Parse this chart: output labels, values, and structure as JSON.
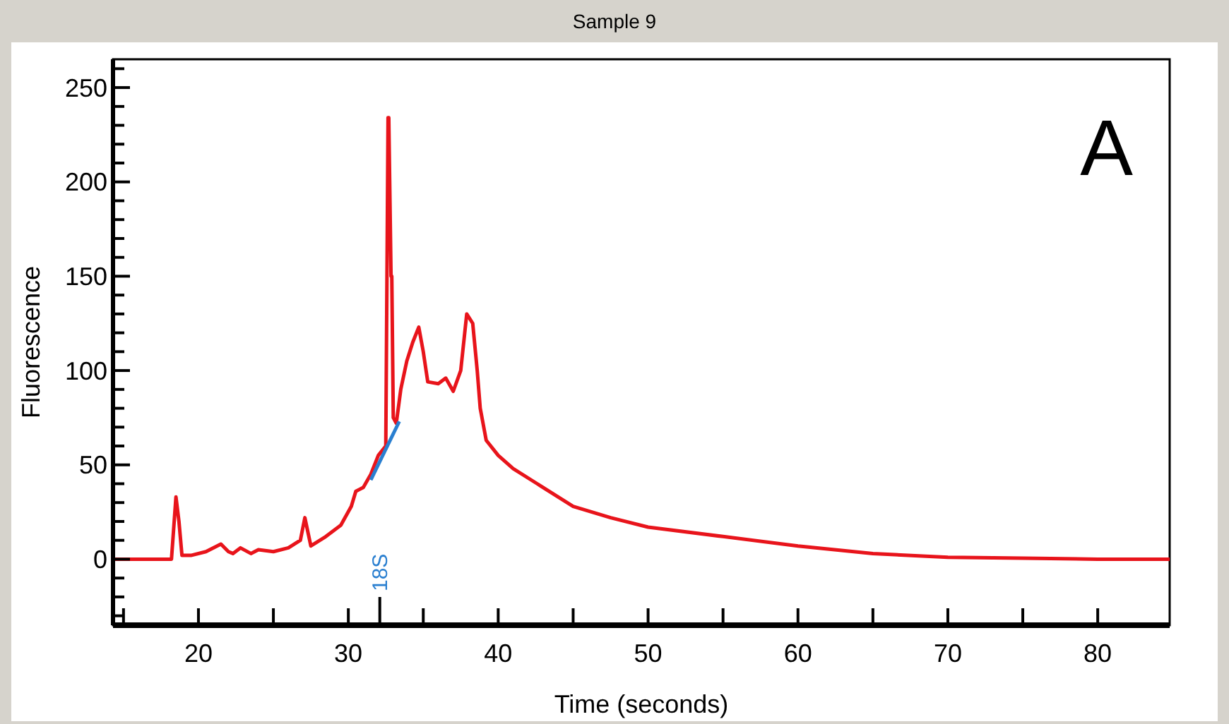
{
  "chart_data": {
    "type": "line",
    "title": "Sample 9",
    "xlabel": "Time (seconds)",
    "ylabel": "Fluorescence",
    "xlim": [
      14.3,
      84.8
    ],
    "ylim": [
      -35,
      265
    ],
    "xticks": [
      {
        "value": 15,
        "label": null
      },
      20,
      {
        "value": 25,
        "label": null
      },
      30,
      {
        "value": 35,
        "label": null
      },
      40,
      {
        "value": 45,
        "label": null
      },
      50,
      {
        "value": 55,
        "label": null
      },
      60,
      {
        "value": 65,
        "label": null
      },
      70,
      {
        "value": 75,
        "label": null
      },
      80
    ],
    "yticks": [
      {
        "value": -30,
        "label": null
      },
      {
        "value": -20,
        "label": null
      },
      {
        "value": -10,
        "label": null
      },
      0,
      {
        "value": 10,
        "label": null
      },
      {
        "value": 20,
        "label": null
      },
      {
        "value": 30,
        "label": null
      },
      {
        "value": 40,
        "label": null
      },
      50,
      {
        "value": 60,
        "label": null
      },
      {
        "value": 70,
        "label": null
      },
      {
        "value": 80,
        "label": null
      },
      {
        "value": 90,
        "label": null
      },
      100,
      {
        "value": 110,
        "label": null
      },
      {
        "value": 120,
        "label": null
      },
      {
        "value": 130,
        "label": null
      },
      {
        "value": 140,
        "label": null
      },
      150,
      {
        "value": 160,
        "label": null
      },
      {
        "value": 170,
        "label": null
      },
      {
        "value": 180,
        "label": null
      },
      {
        "value": 190,
        "label": null
      },
      200,
      {
        "value": 210,
        "label": null
      },
      {
        "value": 220,
        "label": null
      },
      {
        "value": 230,
        "label": null
      },
      {
        "value": 240,
        "label": null
      },
      250,
      {
        "value": 260,
        "label": null
      }
    ],
    "series": [
      {
        "color": "#e8141b",
        "x": [
          14.3,
          18.2,
          18.5,
          18.7,
          18.9,
          19.5,
          20.5,
          21.5,
          22.0,
          22.3,
          22.8,
          23.5,
          24.0,
          25.0,
          26.0,
          26.8,
          27.1,
          27.5,
          28.5,
          29.5,
          30.2,
          30.5,
          31.0,
          31.5,
          32.0,
          32.5,
          32.65,
          32.7,
          32.85,
          32.9,
          33.0,
          33.2,
          33.5,
          33.9,
          34.3,
          34.7,
          35.0,
          35.3,
          36.0,
          36.5,
          37.0,
          37.5,
          37.9,
          38.3,
          38.6,
          38.8,
          39.2,
          40.0,
          41.0,
          42.6,
          45.0,
          47.5,
          50.0,
          55.0,
          60.0,
          65.0,
          70.0,
          75.0,
          80.0,
          84.8
        ],
        "values": [
          0,
          0,
          33,
          20,
          2,
          2,
          4,
          8,
          4,
          3,
          6,
          3,
          5,
          4,
          6,
          10,
          22,
          7,
          12,
          18,
          28,
          36,
          38,
          45,
          55,
          60,
          234,
          234,
          150,
          150,
          75,
          72,
          90,
          105,
          115,
          123,
          110,
          94,
          93,
          96,
          89,
          100,
          130,
          125,
          100,
          80,
          63,
          55,
          48,
          40,
          28,
          22,
          17,
          12,
          7,
          3,
          1,
          0.5,
          0,
          0
        ]
      },
      {
        "color": "#2a7fd0",
        "x": [
          31.5,
          33.4
        ],
        "values": [
          42,
          73
        ]
      }
    ],
    "ref_lines": [
      {
        "axis": "x",
        "value": 32.1,
        "label": "18S"
      }
    ],
    "annotations": [
      "A"
    ]
  }
}
